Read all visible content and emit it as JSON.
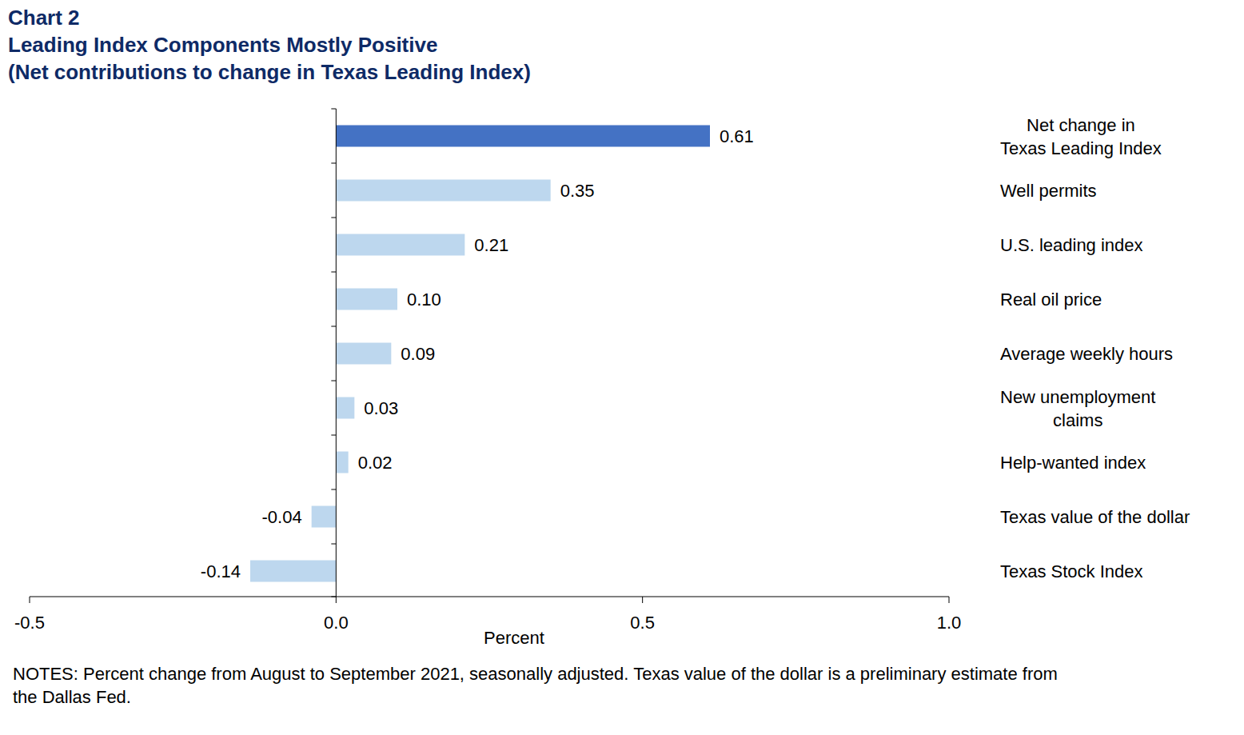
{
  "chart_data": {
    "type": "bar",
    "orientation": "horizontal",
    "title": "Chart 2",
    "subtitle": [
      "Leading Index Components Mostly Positive",
      "(Net contributions to change in Texas Leading Index)"
    ],
    "categories": [
      "Net change in\nTexas Leading Index",
      "Well permits",
      "U.S. leading index",
      "Real oil price",
      "Average weekly hours",
      "New unemployment\nclaims",
      "Help-wanted index",
      "Texas value of the dollar",
      "Texas Stock Index"
    ],
    "values": [
      0.61,
      0.35,
      0.21,
      0.1,
      0.09,
      0.03,
      0.02,
      -0.04,
      -0.14
    ],
    "value_labels": [
      "0.61",
      "0.35",
      "0.21",
      "0.10",
      "0.09",
      "0.03",
      "0.02",
      "-0.04",
      "-0.14"
    ],
    "colors": [
      "#4472c4",
      "#bdd7ee",
      "#bdd7ee",
      "#bdd7ee",
      "#bdd7ee",
      "#bdd7ee",
      "#bdd7ee",
      "#bdd7ee",
      "#bdd7ee"
    ],
    "data_labels": true,
    "xlim": [
      -0.5,
      1.0
    ],
    "xticks": [
      -0.5,
      {
        "value": 0,
        "label": "0.0"
      },
      0.5,
      {
        "value": 1.0,
        "label": "1.0"
      }
    ],
    "x_label": "Percent",
    "notes": "NOTES: Percent change from August to September 2021, seasonally adjusted. Texas value of the dollar is a preliminary estimate from\nthe Dallas Fed."
  }
}
